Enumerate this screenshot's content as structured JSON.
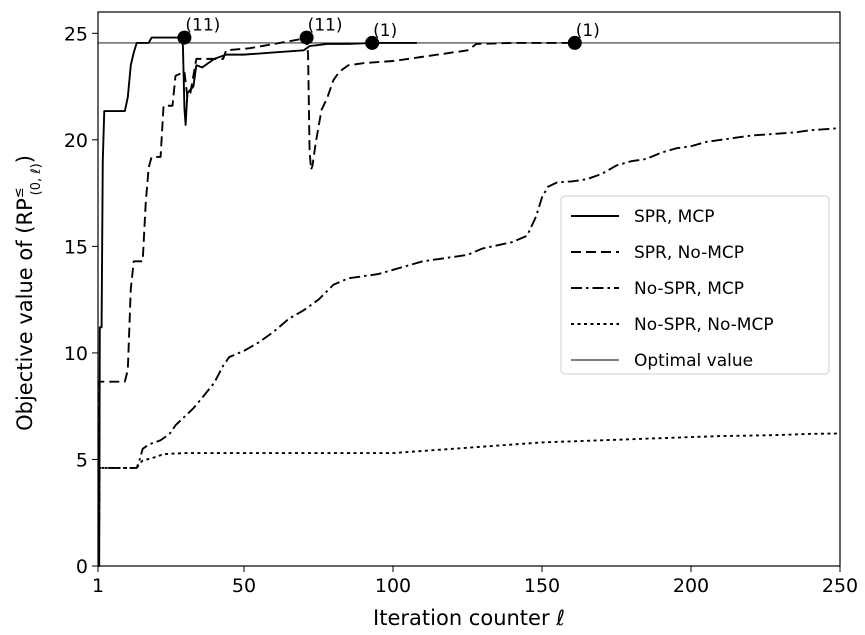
{
  "chart_data": {
    "type": "line",
    "title": "",
    "xlabel": "Iteration counter ℓ",
    "ylabel_main": "Objective value of (RP",
    "ylabel_sup": "≤",
    "ylabel_sub": "(0, ℓ)",
    "ylabel_close": ")",
    "xlim": [
      1,
      250
    ],
    "ylim": [
      0,
      26
    ],
    "x_ticks": [
      1,
      50,
      100,
      150,
      200,
      250
    ],
    "y_ticks": [
      0,
      5,
      10,
      15,
      20,
      25
    ],
    "grid": false,
    "legend_position": "center-right",
    "optimal_value": 24.55,
    "series": [
      {
        "name": "SPR, MCP",
        "style": "solid",
        "points": [
          [
            1,
            0
          ],
          [
            1.4,
            0
          ],
          [
            1.6,
            11.2
          ],
          [
            2.2,
            11.2
          ],
          [
            2.6,
            19.0
          ],
          [
            3.1,
            21.35
          ],
          [
            10,
            21.35
          ],
          [
            11,
            22.0
          ],
          [
            12,
            23.5
          ],
          [
            13,
            24.1
          ],
          [
            14,
            24.55
          ],
          [
            18,
            24.55
          ],
          [
            19,
            24.8
          ],
          [
            29,
            24.8
          ],
          [
            29.5,
            24.4
          ],
          [
            30,
            21.5
          ],
          [
            30.4,
            20.7
          ],
          [
            31,
            22.2
          ],
          [
            33,
            22.5
          ],
          [
            34,
            23.5
          ],
          [
            36,
            23.4
          ],
          [
            38,
            23.6
          ],
          [
            40,
            23.8
          ],
          [
            42,
            23.9
          ],
          [
            44,
            24.0
          ],
          [
            50,
            24.0
          ],
          [
            60,
            24.1
          ],
          [
            70,
            24.2
          ],
          [
            72,
            24.4
          ],
          [
            78,
            24.5
          ],
          [
            85,
            24.5
          ],
          [
            93,
            24.55
          ],
          [
            108,
            24.55
          ]
        ]
      },
      {
        "name": "SPR, No-MCP",
        "style": "dashed",
        "points": [
          [
            1,
            0
          ],
          [
            1.3,
            0
          ],
          [
            1.5,
            8.65
          ],
          [
            10,
            8.65
          ],
          [
            11,
            9.2
          ],
          [
            12,
            13.0
          ],
          [
            13,
            14.3
          ],
          [
            16,
            14.3
          ],
          [
            17,
            17.0
          ],
          [
            18,
            18.7
          ],
          [
            19,
            19.2
          ],
          [
            22,
            19.2
          ],
          [
            23,
            21.6
          ],
          [
            26,
            21.6
          ],
          [
            27,
            23.0
          ],
          [
            30,
            23.2
          ],
          [
            31,
            22.0
          ],
          [
            32,
            22.2
          ],
          [
            34,
            23.8
          ],
          [
            43,
            23.8
          ],
          [
            44,
            24.2
          ],
          [
            52,
            24.3
          ],
          [
            60,
            24.5
          ],
          [
            68,
            24.7
          ],
          [
            71,
            24.8
          ],
          [
            71.5,
            24.0
          ],
          [
            72,
            19.5
          ],
          [
            72.5,
            18.6
          ],
          [
            73,
            18.8
          ],
          [
            74,
            19.8
          ],
          [
            76,
            21.4
          ],
          [
            78,
            22.0
          ],
          [
            80,
            22.8
          ],
          [
            82,
            23.2
          ],
          [
            85,
            23.5
          ],
          [
            90,
            23.6
          ],
          [
            95,
            23.65
          ],
          [
            100,
            23.7
          ],
          [
            105,
            23.8
          ],
          [
            110,
            23.9
          ],
          [
            115,
            24.0
          ],
          [
            120,
            24.1
          ],
          [
            125,
            24.2
          ],
          [
            128,
            24.5
          ],
          [
            140,
            24.55
          ],
          [
            161,
            24.55
          ]
        ]
      },
      {
        "name": "No-SPR, MCP",
        "style": "dashdot",
        "points": [
          [
            1,
            0
          ],
          [
            1.3,
            0
          ],
          [
            1.5,
            4.6
          ],
          [
            14,
            4.6
          ],
          [
            15,
            5.0
          ],
          [
            16,
            5.5
          ],
          [
            18,
            5.7
          ],
          [
            20,
            5.8
          ],
          [
            22,
            5.9
          ],
          [
            25,
            6.2
          ],
          [
            27,
            6.6
          ],
          [
            30,
            7.0
          ],
          [
            33,
            7.4
          ],
          [
            36,
            7.9
          ],
          [
            40,
            8.6
          ],
          [
            43,
            9.4
          ],
          [
            45,
            9.8
          ],
          [
            50,
            10.1
          ],
          [
            55,
            10.5
          ],
          [
            60,
            11.0
          ],
          [
            65,
            11.6
          ],
          [
            70,
            12.0
          ],
          [
            75,
            12.5
          ],
          [
            80,
            13.2
          ],
          [
            85,
            13.5
          ],
          [
            90,
            13.6
          ],
          [
            95,
            13.7
          ],
          [
            100,
            13.9
          ],
          [
            105,
            14.1
          ],
          [
            110,
            14.3
          ],
          [
            115,
            14.4
          ],
          [
            120,
            14.5
          ],
          [
            125,
            14.6
          ],
          [
            130,
            14.9
          ],
          [
            140,
            15.2
          ],
          [
            145,
            15.5
          ],
          [
            148,
            16.4
          ],
          [
            150,
            17.3
          ],
          [
            152,
            17.8
          ],
          [
            155,
            18.0
          ],
          [
            160,
            18.05
          ],
          [
            165,
            18.15
          ],
          [
            170,
            18.4
          ],
          [
            175,
            18.8
          ],
          [
            180,
            19.0
          ],
          [
            185,
            19.1
          ],
          [
            190,
            19.4
          ],
          [
            195,
            19.6
          ],
          [
            200,
            19.7
          ],
          [
            205,
            19.9
          ],
          [
            210,
            20.0
          ],
          [
            215,
            20.1
          ],
          [
            220,
            20.2
          ],
          [
            225,
            20.25
          ],
          [
            230,
            20.3
          ],
          [
            235,
            20.35
          ],
          [
            240,
            20.45
          ],
          [
            245,
            20.5
          ],
          [
            250,
            20.55
          ]
        ]
      },
      {
        "name": "No-SPR, No-MCP",
        "style": "dotted",
        "points": [
          [
            1,
            0
          ],
          [
            1.3,
            0
          ],
          [
            1.5,
            4.6
          ],
          [
            14,
            4.6
          ],
          [
            15,
            4.8
          ],
          [
            16,
            4.95
          ],
          [
            20,
            5.1
          ],
          [
            23,
            5.25
          ],
          [
            30,
            5.3
          ],
          [
            40,
            5.3
          ],
          [
            50,
            5.3
          ],
          [
            60,
            5.3
          ],
          [
            70,
            5.3
          ],
          [
            80,
            5.3
          ],
          [
            90,
            5.3
          ],
          [
            100,
            5.3
          ],
          [
            110,
            5.4
          ],
          [
            120,
            5.5
          ],
          [
            130,
            5.6
          ],
          [
            140,
            5.7
          ],
          [
            150,
            5.8
          ],
          [
            160,
            5.85
          ],
          [
            170,
            5.9
          ],
          [
            180,
            5.95
          ],
          [
            190,
            6.0
          ],
          [
            200,
            6.05
          ],
          [
            210,
            6.1
          ],
          [
            220,
            6.12
          ],
          [
            230,
            6.15
          ],
          [
            240,
            6.2
          ],
          [
            250,
            6.22
          ]
        ]
      }
    ],
    "annotations": [
      {
        "x": 30,
        "y": 24.8,
        "label": "(11)"
      },
      {
        "x": 71,
        "y": 24.8,
        "label": "(11)"
      },
      {
        "x": 93,
        "y": 24.55,
        "label": "(1)"
      },
      {
        "x": 161,
        "y": 24.55,
        "label": "(1)"
      }
    ],
    "optimal_label": "Optimal value"
  }
}
